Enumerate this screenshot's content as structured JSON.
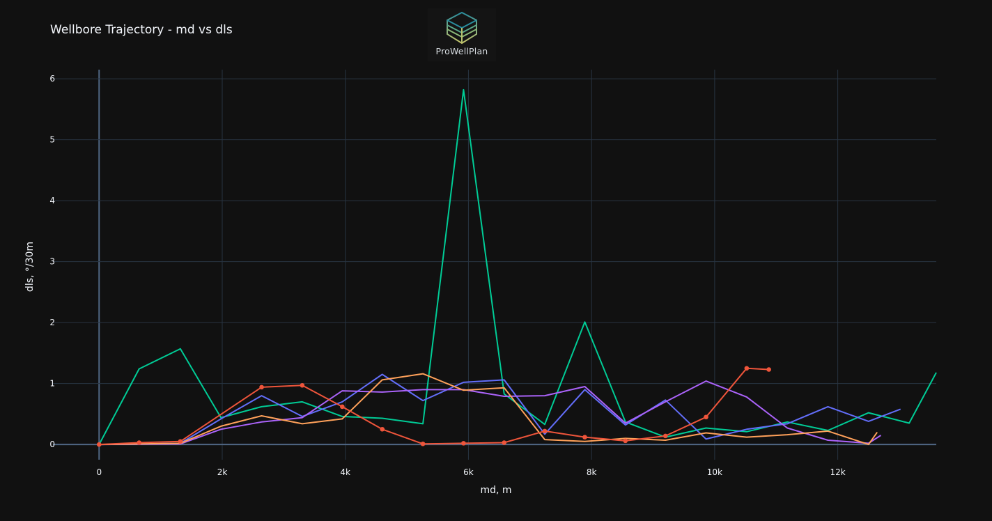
{
  "logo": {
    "text": "ProWellPlan"
  },
  "chart_data": {
    "type": "line",
    "title": "Wellbore Trajectory - md vs dls",
    "xlabel": "md, m",
    "ylabel": "dls, °/30m",
    "xlim": [
      -750,
      13600
    ],
    "ylim": [
      -0.25,
      6.15
    ],
    "x_ticks": [
      0,
      2000,
      4000,
      6000,
      8000,
      10000,
      12000
    ],
    "x_tick_labels": [
      "0",
      "2k",
      "4k",
      "6k",
      "8k",
      "10k",
      "12k"
    ],
    "y_ticks": [
      0,
      1,
      2,
      3,
      4,
      5,
      6
    ],
    "y_tick_labels": [
      "0",
      "1",
      "2",
      "3",
      "4",
      "5",
      "6"
    ],
    "grid": true,
    "legend": "none",
    "series": [
      {
        "color": "#00cc96",
        "markers": false,
        "x": [
          0,
          650,
          1320,
          1980,
          2640,
          3300,
          3950,
          4600,
          5260,
          5920,
          6580,
          7240,
          7890,
          8550,
          9200,
          9860,
          10520,
          11180,
          11840,
          12500,
          13160,
          13600
        ],
        "y": [
          0,
          1.24,
          1.57,
          0.44,
          0.62,
          0.7,
          0.46,
          0.43,
          0.34,
          5.82,
          0.83,
          0.33,
          2.01,
          0.37,
          0.12,
          0.27,
          0.21,
          0.37,
          0.23,
          0.52,
          0.35,
          1.18
        ]
      },
      {
        "color": "#636efa",
        "markers": false,
        "x": [
          0,
          1320,
          1980,
          2640,
          3300,
          3950,
          4600,
          5260,
          5920,
          6580,
          7240,
          7890,
          8550,
          9200,
          9860,
          10520,
          11180,
          11840,
          12500,
          13020
        ],
        "y": [
          0,
          0.02,
          0.42,
          0.8,
          0.46,
          0.7,
          1.15,
          0.72,
          1.02,
          1.06,
          0.17,
          0.9,
          0.32,
          0.73,
          0.09,
          0.25,
          0.34,
          0.62,
          0.38,
          0.58
        ]
      },
      {
        "color": "#ab63fa",
        "markers": false,
        "x": [
          0,
          1320,
          1980,
          2640,
          3300,
          3950,
          4600,
          5260,
          5920,
          6580,
          7240,
          7890,
          8550,
          9200,
          9860,
          10520,
          11180,
          11840,
          12500,
          12700
        ],
        "y": [
          0,
          0.01,
          0.25,
          0.37,
          0.44,
          0.88,
          0.86,
          0.9,
          0.9,
          0.79,
          0.8,
          0.95,
          0.35,
          0.7,
          1.04,
          0.78,
          0.27,
          0.07,
          0.02,
          0.15
        ]
      },
      {
        "color": "#ffa15a",
        "markers": false,
        "x": [
          0,
          1320,
          1980,
          2640,
          3300,
          3950,
          4600,
          5260,
          5920,
          6580,
          7240,
          7890,
          8550,
          9200,
          9860,
          10520,
          11180,
          11840,
          12500,
          12640
        ],
        "y": [
          0,
          0.02,
          0.3,
          0.47,
          0.34,
          0.42,
          1.06,
          1.16,
          0.89,
          0.93,
          0.08,
          0.05,
          0.1,
          0.07,
          0.19,
          0.12,
          0.16,
          0.22,
          0.0,
          0.2
        ]
      },
      {
        "color": "#ef553b",
        "markers": true,
        "x": [
          0,
          650,
          1320,
          2640,
          3300,
          3950,
          4600,
          5260,
          5920,
          6580,
          7240,
          7890,
          8550,
          9200,
          9860,
          10520,
          10880
        ],
        "y": [
          0,
          0.03,
          0.05,
          0.94,
          0.97,
          0.62,
          0.25,
          0.01,
          0.02,
          0.03,
          0.22,
          0.12,
          0.06,
          0.14,
          0.45,
          1.25,
          1.23
        ]
      }
    ]
  }
}
